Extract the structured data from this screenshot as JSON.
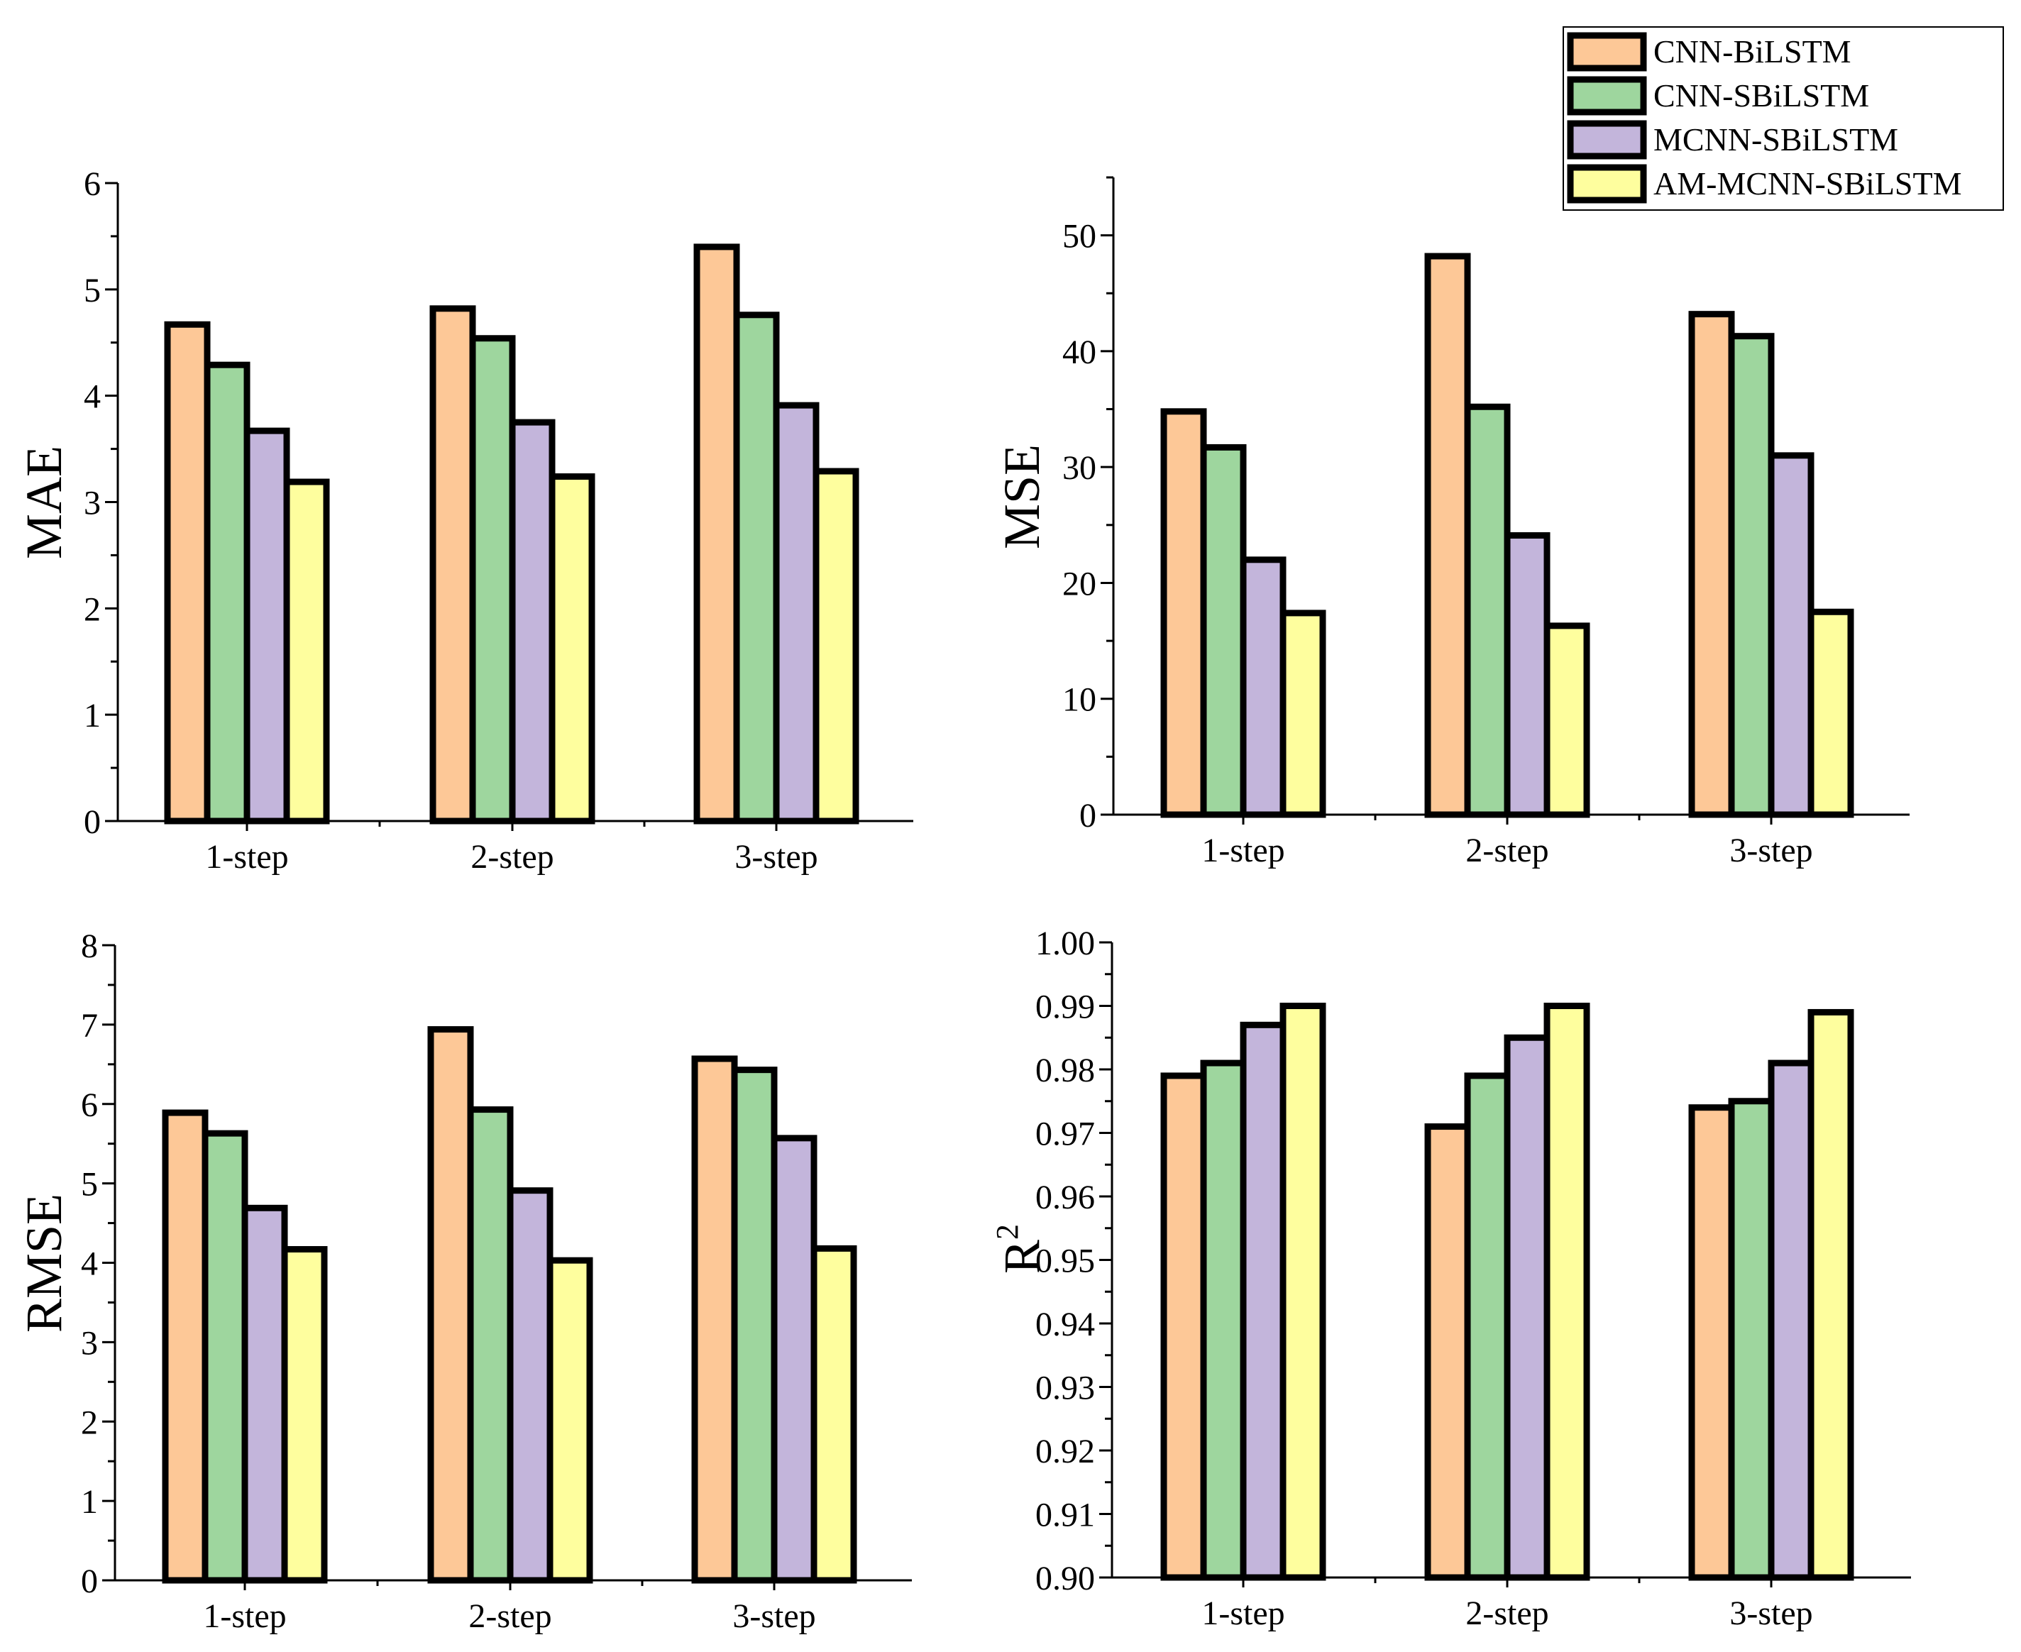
{
  "legend": [
    {
      "name": "CNN-BiLSTM",
      "color": "#FDC897"
    },
    {
      "name": "CNN-SBiLSTM",
      "color": "#9ED69E"
    },
    {
      "name": "MCNN-SBiLSTM",
      "color": "#C3B5DB"
    },
    {
      "name": "AM-MCNN-SBiLSTM",
      "color": "#FEFE9E"
    }
  ],
  "chart_data": [
    {
      "type": "bar",
      "ylabel": "MAE",
      "categories": [
        "1-step",
        "2-step",
        "3-step"
      ],
      "ylim": [
        0,
        6
      ],
      "yticks": [
        0,
        1,
        2,
        3,
        4,
        5,
        6
      ],
      "ytick_labels": [
        "0",
        "1",
        "2",
        "3",
        "4",
        "5",
        "6"
      ],
      "series": [
        {
          "name": "CNN-BiLSTM",
          "values": [
            4.67,
            4.82,
            5.4
          ]
        },
        {
          "name": "CNN-SBiLSTM",
          "values": [
            4.29,
            4.54,
            4.76
          ]
        },
        {
          "name": "MCNN-SBiLSTM",
          "values": [
            3.67,
            3.75,
            3.91
          ]
        },
        {
          "name": "AM-MCNN-SBiLSTM",
          "values": [
            3.19,
            3.24,
            3.29
          ]
        }
      ]
    },
    {
      "type": "bar",
      "ylabel": "MSE",
      "categories": [
        "1-step",
        "2-step",
        "3-step"
      ],
      "ylim": [
        0,
        55
      ],
      "yticks": [
        0,
        10,
        20,
        30,
        40,
        50
      ],
      "ytick_labels": [
        "0",
        "10",
        "20",
        "30",
        "40",
        "50"
      ],
      "series": [
        {
          "name": "CNN-BiLSTM",
          "values": [
            34.8,
            48.2,
            43.2
          ]
        },
        {
          "name": "CNN-SBiLSTM",
          "values": [
            31.7,
            35.2,
            41.3
          ]
        },
        {
          "name": "MCNN-SBiLSTM",
          "values": [
            22.0,
            24.1,
            31.0
          ]
        },
        {
          "name": "AM-MCNN-SBiLSTM",
          "values": [
            17.4,
            16.3,
            17.5
          ]
        }
      ]
    },
    {
      "type": "bar",
      "ylabel": "RMSE",
      "categories": [
        "1-step",
        "2-step",
        "3-step"
      ],
      "ylim": [
        0,
        8
      ],
      "yticks": [
        0,
        1,
        2,
        3,
        4,
        5,
        6,
        7,
        8
      ],
      "ytick_labels": [
        "0",
        "1",
        "2",
        "3",
        "4",
        "5",
        "6",
        "7",
        "8"
      ],
      "series": [
        {
          "name": "CNN-BiLSTM",
          "values": [
            5.89,
            6.94,
            6.57
          ]
        },
        {
          "name": "CNN-SBiLSTM",
          "values": [
            5.63,
            5.93,
            6.43
          ]
        },
        {
          "name": "MCNN-SBiLSTM",
          "values": [
            4.69,
            4.91,
            5.57
          ]
        },
        {
          "name": "AM-MCNN-SBiLSTM",
          "values": [
            4.17,
            4.03,
            4.18
          ]
        }
      ]
    },
    {
      "type": "bar",
      "ylabel": "R",
      "ylabel_sup": "2",
      "categories": [
        "1-step",
        "2-step",
        "3-step"
      ],
      "ylim": [
        0.9,
        1.0
      ],
      "yticks": [
        0.9,
        0.91,
        0.92,
        0.93,
        0.94,
        0.95,
        0.96,
        0.97,
        0.98,
        0.99,
        1.0
      ],
      "ytick_labels": [
        "0.90",
        "0.91",
        "0.92",
        "0.93",
        "0.94",
        "0.95",
        "0.96",
        "0.97",
        "0.98",
        "0.99",
        "1.00"
      ],
      "series": [
        {
          "name": "CNN-BiLSTM",
          "values": [
            0.979,
            0.971,
            0.974
          ]
        },
        {
          "name": "CNN-SBiLSTM",
          "values": [
            0.981,
            0.979,
            0.975
          ]
        },
        {
          "name": "MCNN-SBiLSTM",
          "values": [
            0.987,
            0.985,
            0.981
          ]
        },
        {
          "name": "AM-MCNN-SBiLSTM",
          "values": [
            0.99,
            0.99,
            0.989
          ]
        }
      ]
    }
  ]
}
